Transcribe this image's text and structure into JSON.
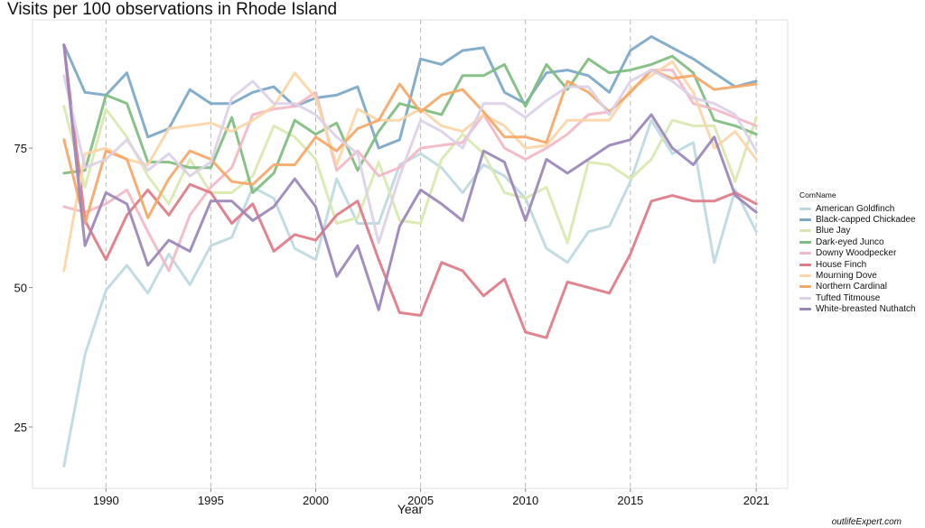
{
  "watermark": "outlifeExpert.com",
  "chart_data": {
    "type": "line",
    "title": "Visits per 100 observations in Rhode Island",
    "xlabel": "Year",
    "ylabel": "",
    "legend_title": "ComName",
    "legend_position": "right",
    "xlim": [
      1986.5,
      2022.5
    ],
    "ylim": [
      14,
      98
    ],
    "x_ticks": [
      1990,
      1995,
      2000,
      2005,
      2010,
      2015,
      2021
    ],
    "y_ticks": [
      25,
      50,
      75
    ],
    "grid": "vertical dashed at x ticks",
    "x": [
      1988,
      1989,
      1990,
      1991,
      1992,
      1993,
      1994,
      1995,
      1996,
      1997,
      1998,
      1999,
      2000,
      2001,
      2002,
      2003,
      2004,
      2005,
      2006,
      2007,
      2008,
      2009,
      2010,
      2011,
      2012,
      2013,
      2014,
      2015,
      2016,
      2017,
      2018,
      2019,
      2020,
      2021
    ],
    "series": [
      {
        "name": "American Goldfinch",
        "color": "#bcd9e1",
        "values": [
          18,
          38,
          49.5,
          54,
          49,
          56,
          50.5,
          57.5,
          59,
          68,
          66,
          57,
          55,
          69.5,
          61.5,
          61.5,
          72,
          74,
          71.5,
          67,
          72,
          70,
          66,
          57,
          54.5,
          60,
          61,
          69,
          80,
          74,
          76,
          54.5,
          67.5,
          60
        ]
      },
      {
        "name": "Black-capped Chickadee",
        "color": "#7ba7c9",
        "values": [
          93.5,
          85,
          84.5,
          88.5,
          77,
          78.5,
          85.5,
          83,
          83,
          85,
          86,
          82.5,
          84,
          84.5,
          86,
          75,
          76.5,
          91,
          90,
          92.5,
          93,
          85,
          83,
          88.5,
          89,
          88,
          85,
          92.5,
          95,
          93,
          91,
          88.5,
          86,
          87
        ]
      },
      {
        "name": "Blue Jay",
        "color": "#d9e8b0",
        "values": [
          82.5,
          68,
          82,
          77,
          70,
          65,
          73,
          67,
          67,
          70,
          79,
          77,
          73,
          61.5,
          62.5,
          72.5,
          62,
          61.5,
          73,
          77.5,
          74,
          67,
          66,
          68,
          58,
          72.5,
          72,
          69.5,
          73,
          80,
          79,
          79,
          69,
          80.5
        ]
      },
      {
        "name": "Dark-eyed Junco",
        "color": "#7fbd7f",
        "values": [
          70.5,
          71,
          84.5,
          83,
          72.5,
          72.5,
          71.5,
          71.5,
          80.5,
          67,
          70.5,
          80,
          77.5,
          79.5,
          71,
          78,
          83,
          82,
          81,
          88,
          88,
          90,
          82.5,
          90,
          85.5,
          91,
          88.5,
          89,
          90,
          91.5,
          88.5,
          80,
          79,
          77.5
        ]
      },
      {
        "name": "Downy Woodpecker",
        "color": "#f2b8c6",
        "values": [
          64.5,
          63.5,
          65,
          67.5,
          60,
          53,
          63,
          68,
          71.5,
          81,
          82,
          82.5,
          85,
          71,
          74.5,
          70,
          71.5,
          75,
          75.5,
          76,
          81,
          75,
          73,
          75,
          77.5,
          81,
          81.5,
          85,
          89,
          89,
          83,
          82,
          80.5,
          79
        ]
      },
      {
        "name": "House Finch",
        "color": "#e07a86",
        "values": [
          93.5,
          62,
          55,
          63,
          67.5,
          63,
          68.5,
          67,
          61.5,
          65,
          56.5,
          59.5,
          58.5,
          63,
          65.5,
          55,
          45.5,
          45,
          54.5,
          53,
          48.5,
          51.5,
          42,
          41,
          51,
          50,
          49,
          56,
          65.5,
          66.5,
          65.5,
          65.5,
          67,
          65
        ]
      },
      {
        "name": "Mourning Dove",
        "color": "#fbd5a6",
        "values": [
          53,
          74,
          75,
          73,
          72,
          78.5,
          79,
          79.5,
          78,
          80,
          82.5,
          88.5,
          84,
          72,
          82,
          80,
          80,
          82,
          79,
          78,
          81,
          79,
          75,
          75.5,
          80,
          80,
          80,
          85.5,
          88,
          90.5,
          85,
          75,
          78,
          73
        ]
      },
      {
        "name": "Northern Cardinal",
        "color": "#f5a766",
        "values": [
          76.5,
          61.5,
          74.5,
          73,
          62.5,
          69.5,
          74.5,
          73,
          69,
          68.5,
          72,
          72,
          77,
          74.5,
          78.5,
          80,
          86.5,
          81.5,
          84.5,
          85.5,
          81.5,
          77,
          77,
          76,
          87,
          85,
          81.5,
          85,
          89,
          87.5,
          88,
          85.5,
          86,
          86.5
        ]
      },
      {
        "name": "Tufted Titmouse",
        "color": "#dcd0e8",
        "values": [
          88,
          71.5,
          73,
          76.5,
          71,
          74,
          70,
          72.5,
          84,
          87,
          83,
          83,
          81,
          77,
          74,
          58,
          70,
          80,
          78,
          75,
          83,
          83,
          80.5,
          83.5,
          86,
          86,
          81,
          87,
          89,
          87,
          84,
          83,
          81,
          74.5
        ]
      },
      {
        "name": "White-breasted Nuthatch",
        "color": "#9b86b8",
        "values": [
          93.5,
          57.5,
          67,
          65,
          54,
          58.5,
          56.5,
          65.5,
          65.5,
          62,
          64.5,
          69.5,
          64.5,
          52,
          57.5,
          46,
          61,
          67.5,
          65,
          62,
          74.5,
          72.5,
          62,
          73,
          70.5,
          73,
          75.5,
          76.5,
          81,
          75,
          72,
          77,
          66.5,
          63.5
        ]
      }
    ]
  }
}
